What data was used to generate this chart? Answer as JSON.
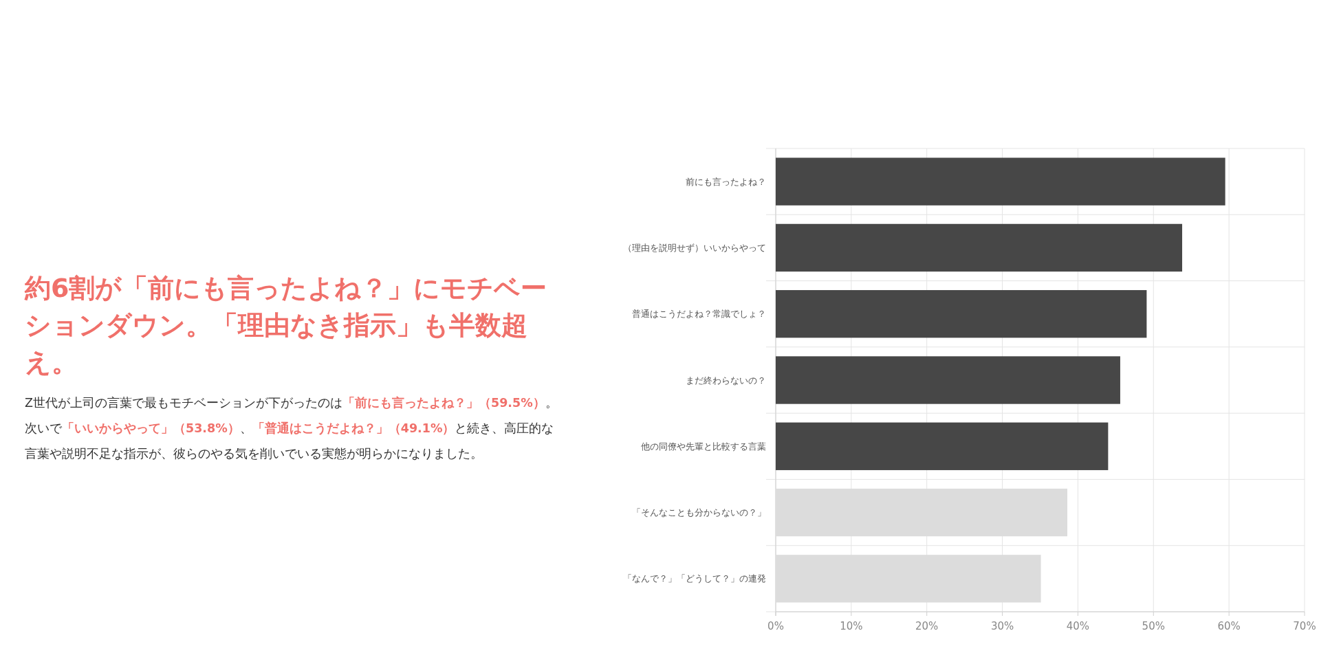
{
  "chart_data": {
    "type": "bar",
    "orientation": "horizontal",
    "title": "約6割が「前にも言ったよね？」にモチベーションダウン。「理由なき指示」も半数超え。",
    "annotations": [
      "Z世代が上司の言葉で最もモチベーションが下がったのは",
      "「前にも言ったよね？」（59.5%）",
      "。次いで",
      "「いいからやって」（53.8%）",
      "、",
      "「普通はこうだよね？」（49.1%）",
      "と続き、高圧的な言葉や説明不足な指示が、彼らのやる気を削いでいる実態が明らかになりました。"
    ],
    "categories": [
      "前にも言ったよね？",
      "（理由を説明せず）いいからやって",
      "普通はこうだよね？常識でしょ？",
      "まだ終わらないの？",
      "他の同僚や先輩と比較する言葉",
      "「そんなことも分からないの？」",
      "「なんで？」「どうして？」の連発"
    ],
    "values": [
      59.5,
      53.8,
      49.1,
      45.6,
      44.0,
      38.6,
      35.1
    ],
    "colors": [
      "#474747",
      "#474747",
      "#474747",
      "#474747",
      "#474747",
      "#dcdcdc",
      "#dcdcdc"
    ],
    "xlim": [
      0,
      70
    ],
    "xticks": [
      {
        "value": 0,
        "label": "0%"
      },
      {
        "value": 10,
        "label": "10%"
      },
      {
        "value": 20,
        "label": "20%"
      },
      {
        "value": 30,
        "label": "30%"
      },
      {
        "value": 40,
        "label": "40%"
      },
      {
        "value": 50,
        "label": "50%"
      },
      {
        "value": 60,
        "label": "60%"
      },
      {
        "value": 70,
        "label": "70%"
      }
    ],
    "grid": true
  }
}
